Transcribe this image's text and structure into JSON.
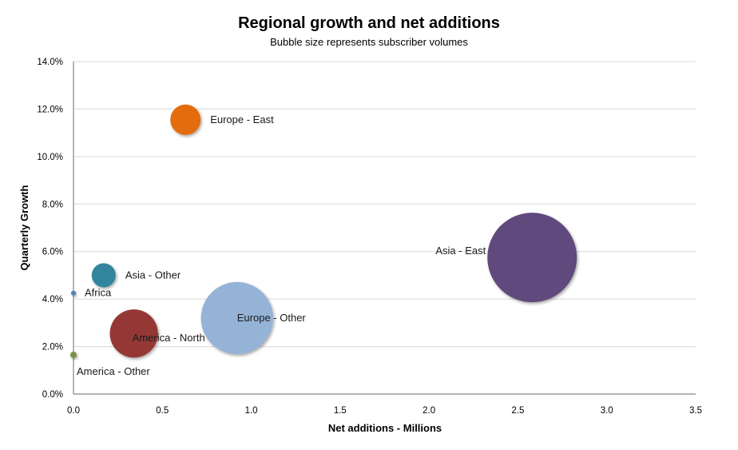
{
  "chart_data": {
    "type": "bubble",
    "title": "Regional growth and net additions",
    "subtitle": "Bubble size represents subscriber volumes",
    "xlabel": "Net additions - Millions",
    "ylabel": "Quarterly Growth",
    "xlim": [
      0,
      3.5
    ],
    "ylim": [
      0,
      14
    ],
    "x_ticks": [
      "0.0",
      "0.5",
      "1.0",
      "1.5",
      "2.0",
      "2.5",
      "3.0",
      "3.5"
    ],
    "x_tick_values": [
      0,
      0.5,
      1.0,
      1.5,
      2.0,
      2.5,
      3.0,
      3.5
    ],
    "y_ticks": [
      "0.0%",
      "2.0%",
      "4.0%",
      "6.0%",
      "8.0%",
      "10.0%",
      "12.0%",
      "14.0%"
    ],
    "y_tick_values": [
      0,
      2,
      4,
      6,
      8,
      10,
      12,
      14
    ],
    "grid": true,
    "legend": "none",
    "series": [
      {
        "name": "Europe - East",
        "x": 0.63,
        "y": 11.55,
        "size": 115,
        "color": "#E46C0A",
        "label_pos": "right"
      },
      {
        "name": "Asia - East",
        "x": 2.58,
        "y": 5.75,
        "size": 1000,
        "color": "#604A7B",
        "label_pos": "left"
      },
      {
        "name": "Asia - Other",
        "x": 0.17,
        "y": 5.0,
        "size": 72,
        "color": "#31859C",
        "label_pos": "right"
      },
      {
        "name": "Africa",
        "x": 0.0,
        "y": 4.25,
        "size": 3,
        "color": "#4F81BD",
        "label_pos": "right"
      },
      {
        "name": "Europe - Other",
        "x": 0.92,
        "y": 3.2,
        "size": 650,
        "color": "#95B3D7",
        "label_pos": "center-right"
      },
      {
        "name": "America - North",
        "x": 0.34,
        "y": 2.55,
        "size": 290,
        "color": "#953735",
        "label_pos": "center-right"
      },
      {
        "name": "America - Other",
        "x": 0.0,
        "y": 1.65,
        "size": 5,
        "color": "#77933C",
        "label_pos": "below"
      }
    ]
  }
}
